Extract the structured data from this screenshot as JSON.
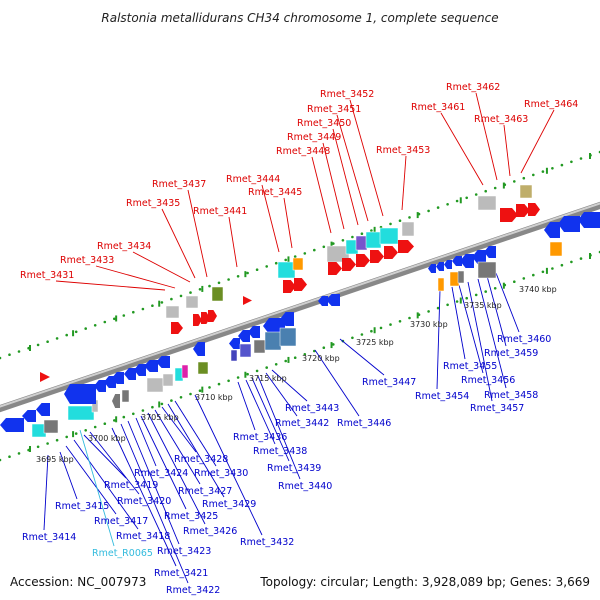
{
  "title": "Ralstonia metallidurans CH34 chromosome 1, complete sequence",
  "footer": {
    "accession": "Accession: NC_007973",
    "topology": "Topology: circular; Length: 3,928,089 bp; Genes: 3,669"
  },
  "colors": {
    "forward_label": "#dd0000",
    "reverse_label": "#0000cc",
    "rna_label": "#33bbdd",
    "forward_gene": "#ee1111",
    "reverse_gene": "#1133ee",
    "backbone": "#999999",
    "tick_dots": "#229922"
  },
  "kbp_ticks": [
    "3695 kbp",
    "3700 kbp",
    "3705 kbp",
    "3710 kbp",
    "3715 kbp",
    "3720 kbp",
    "3725 kbp",
    "3730 kbp",
    "3735 kbp",
    "3740 kbp"
  ],
  "forward_labels": [
    "Rmet_3431",
    "Rmet_3433",
    "Rmet_3434",
    "Rmet_3435",
    "Rmet_3437",
    "Rmet_3441",
    "Rmet_3444",
    "Rmet_3445",
    "Rmet_3448",
    "Rmet_3449",
    "Rmet_3450",
    "Rmet_3451",
    "Rmet_3452",
    "Rmet_3453",
    "Rmet_3461",
    "Rmet_3462",
    "Rmet_3463",
    "Rmet_3464"
  ],
  "reverse_labels": [
    "Rmet_3414",
    "Rmet_3415",
    "Rmet_3417",
    "Rmet_3418",
    "Rmet_R0065",
    "Rmet_3419",
    "Rmet_3420",
    "Rmet_3421",
    "Rmet_3422",
    "Rmet_3423",
    "Rmet_3424",
    "Rmet_3425",
    "Rmet_3426",
    "Rmet_3427",
    "Rmet_3428",
    "Rmet_3429",
    "Rmet_3430",
    "Rmet_3432",
    "Rmet_3436",
    "Rmet_3438",
    "Rmet_3439",
    "Rmet_3440",
    "Rmet_3442",
    "Rmet_3443",
    "Rmet_3446",
    "Rmet_3447",
    "Rmet_3454",
    "Rmet_3455",
    "Rmet_3456",
    "Rmet_3457",
    "Rmet_3458",
    "Rmet_3459",
    "Rmet_3460"
  ]
}
